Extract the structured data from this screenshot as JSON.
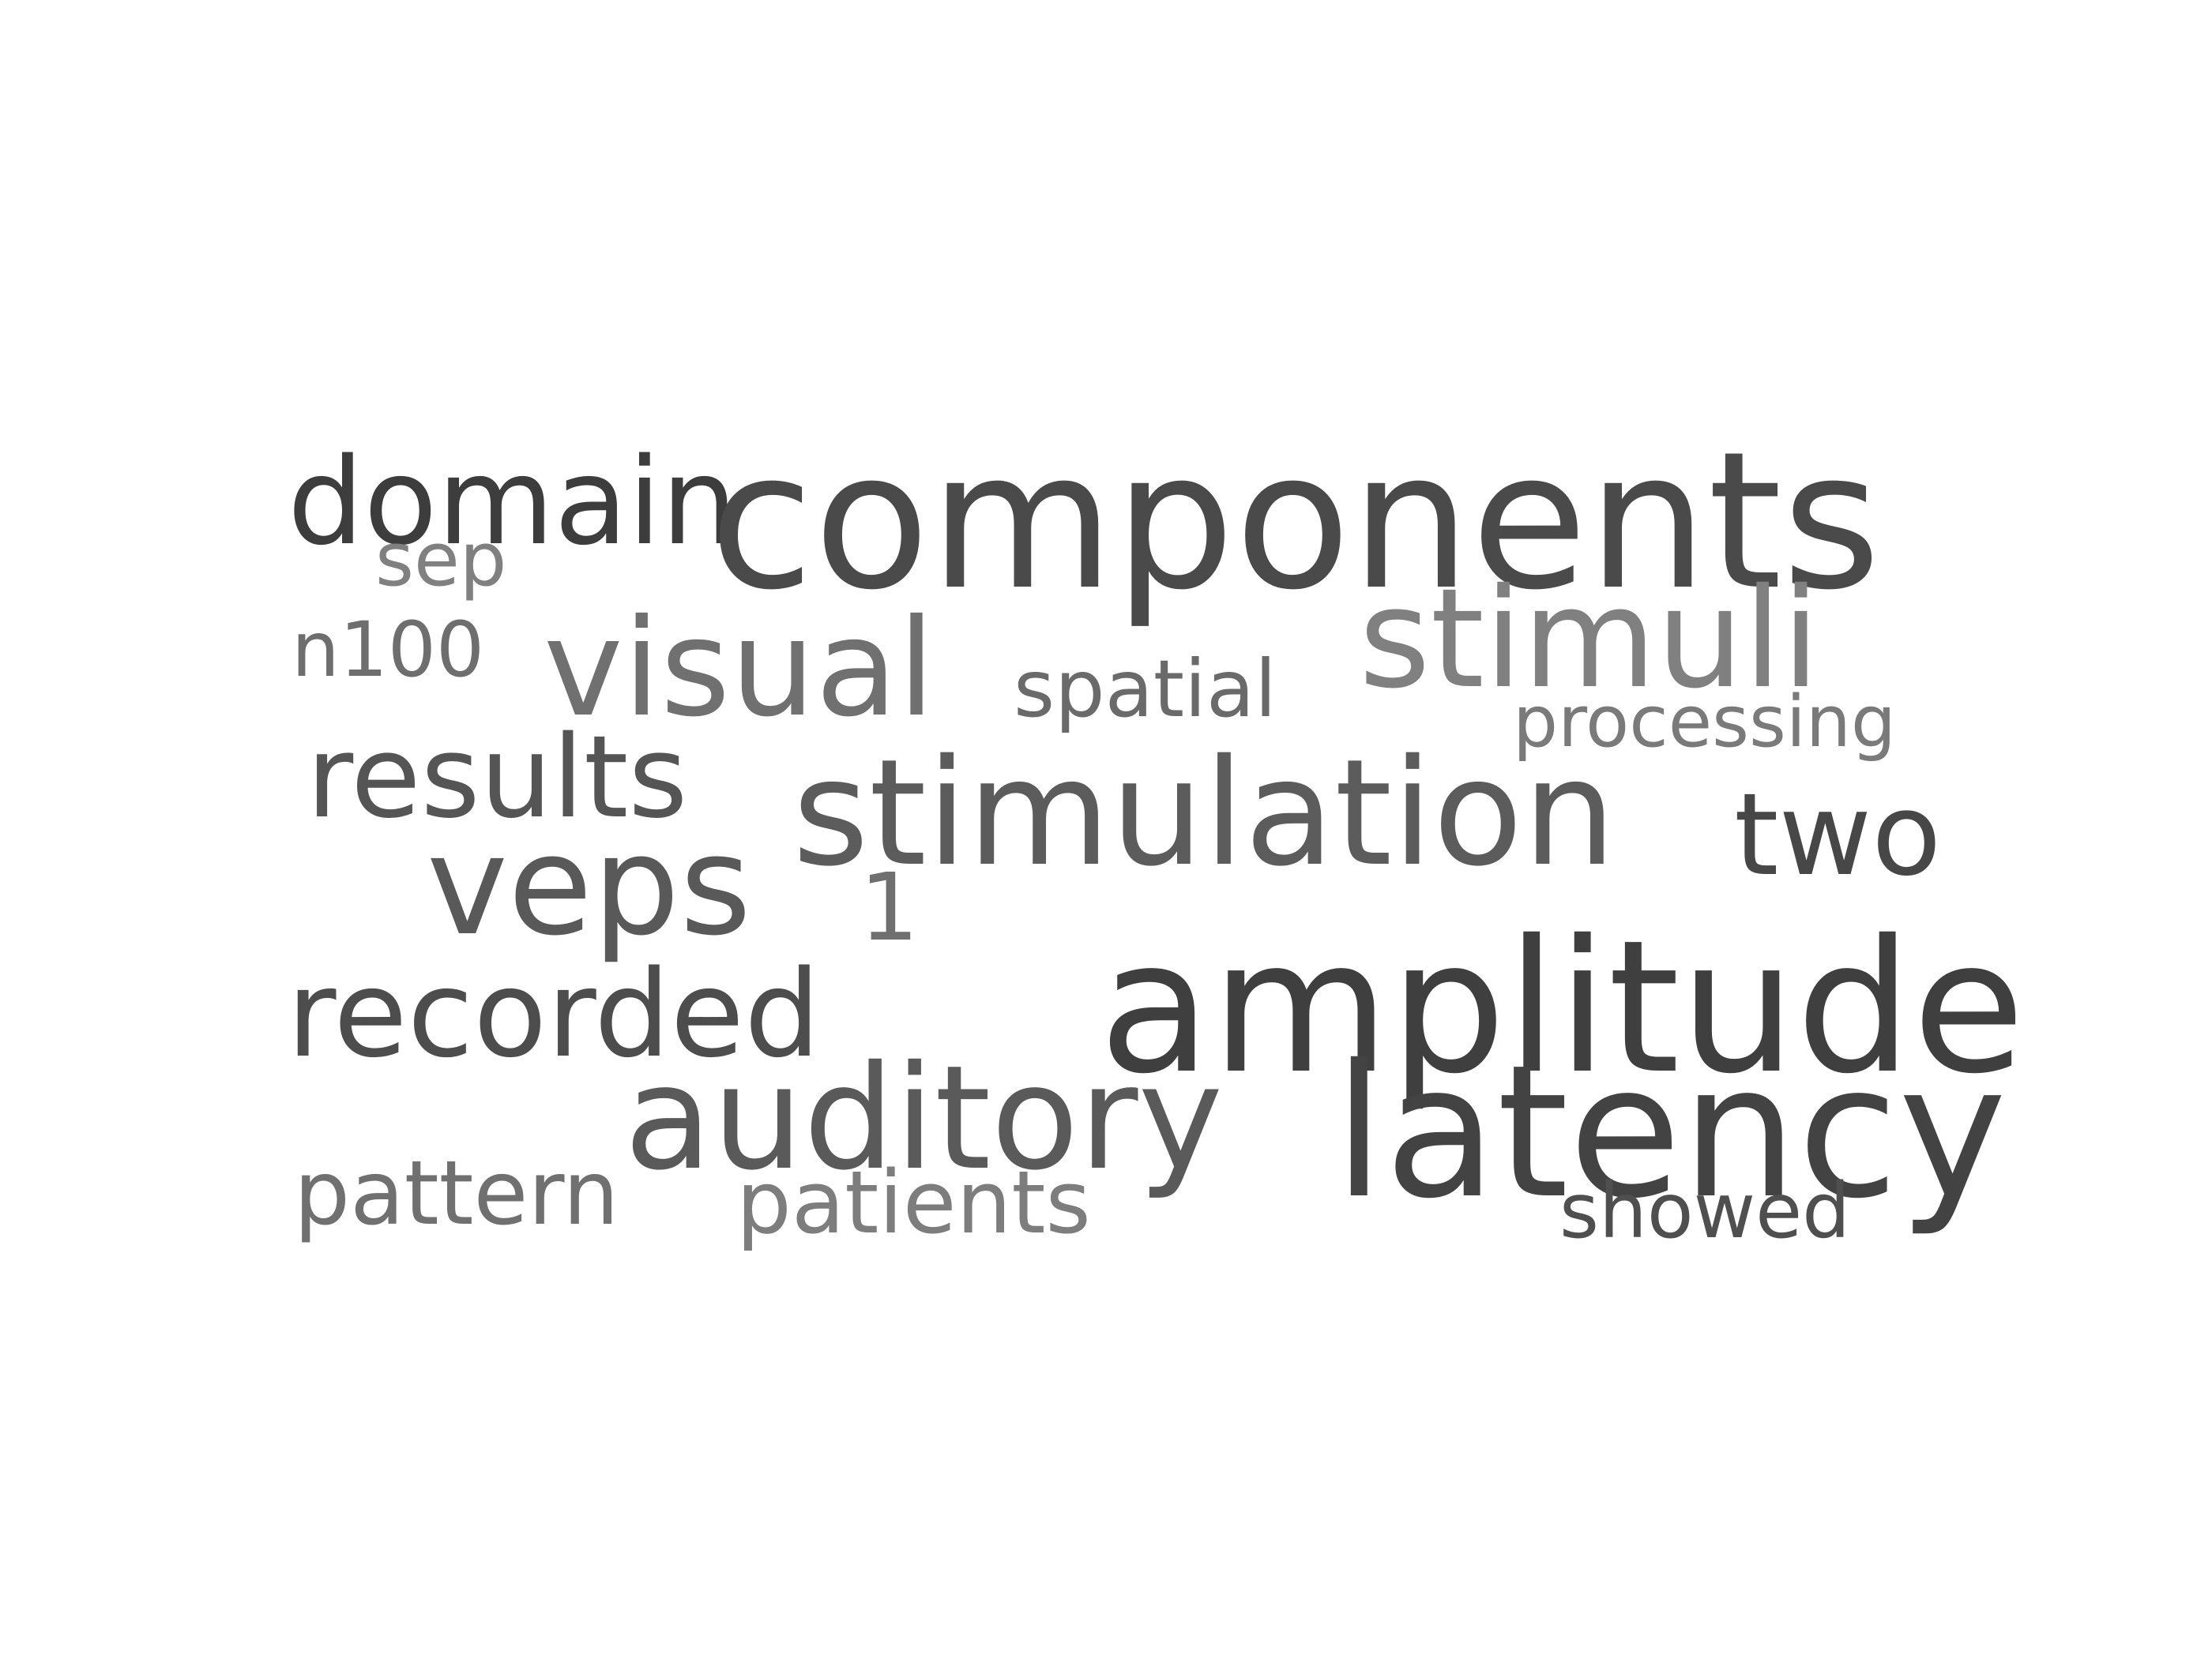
{
  "background_color": "#ffffff",
  "words": [
    {
      "key": "domain",
      "text": "domain",
      "color": "#3d3d3d"
    },
    {
      "key": "components",
      "text": "components",
      "color": "#4a4a4a"
    },
    {
      "key": "sep",
      "text": "sep",
      "color": "#808080"
    },
    {
      "key": "n100",
      "text": "n100",
      "color": "#6e6e6e"
    },
    {
      "key": "visual",
      "text": "visual",
      "color": "#707070"
    },
    {
      "key": "spatial",
      "text": "spatial",
      "color": "#6a6a6a"
    },
    {
      "key": "stimuli",
      "text": "stimuli",
      "color": "#808080"
    },
    {
      "key": "processing",
      "text": "processing",
      "color": "#7a7a7a"
    },
    {
      "key": "results",
      "text": "results",
      "color": "#555555"
    },
    {
      "key": "stimulation",
      "text": "stimulation",
      "color": "#5c5c5c"
    },
    {
      "key": "two",
      "text": "two",
      "color": "#474747"
    },
    {
      "key": "veps",
      "text": "veps",
      "color": "#595959"
    },
    {
      "key": "one",
      "text": "1",
      "color": "#6f6f6f"
    },
    {
      "key": "amplitude",
      "text": "amplitude",
      "color": "#3f3f3f"
    },
    {
      "key": "recorded",
      "text": "recorded",
      "color": "#4d4d4d"
    },
    {
      "key": "auditory",
      "text": "auditory",
      "color": "#5a5a5a"
    },
    {
      "key": "latency",
      "text": "latency",
      "color": "#434343"
    },
    {
      "key": "pattern",
      "text": "pattern",
      "color": "#707070"
    },
    {
      "key": "patients",
      "text": "patients",
      "color": "#7d7d7d"
    },
    {
      "key": "showed",
      "text": "showed",
      "color": "#4f4f4f"
    }
  ]
}
